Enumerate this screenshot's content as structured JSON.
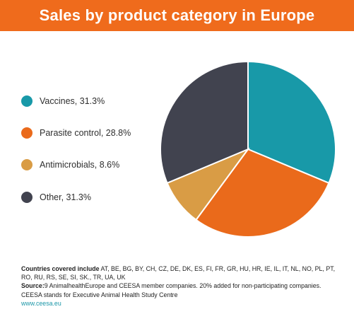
{
  "banner": {
    "title": "Sales by product category in Europe",
    "background": "#ef6b1c"
  },
  "chart_data": {
    "type": "pie",
    "title": "Sales by product category in Europe",
    "series": [
      {
        "label": "Vaccines, 31.3%",
        "value": 31.3,
        "color": "#1899a8"
      },
      {
        "label": "Parasite control, 28.8%",
        "value": 28.8,
        "color": "#ea6a1b"
      },
      {
        "label": "Antimicrobials, 8.6%",
        "value": 8.6,
        "color": "#d99c45"
      },
      {
        "label": "Other, 31.3%",
        "value": 31.3,
        "color": "#41434f"
      }
    ],
    "legend_position": "left",
    "start_angle": "top",
    "direction": "clockwise"
  },
  "footer": {
    "countries_label": "Countries covered include",
    "countries_text": "AT, BE, BG, BY, CH, CZ, DE, DK, ES, FI, FR, GR, HU, HR, IE, IL, IT, NL, NO, PL, PT, RO, RU, RS, SE, SI, SK., TR, UA, UK",
    "source_label": "Source:",
    "source_text": "9 AnimalhealthEurope and CEESA member companies. 20% added for non-participating companies. CEESA stands for Executive Animal Health Study Centre",
    "link_text": "www.ceesa.eu"
  }
}
